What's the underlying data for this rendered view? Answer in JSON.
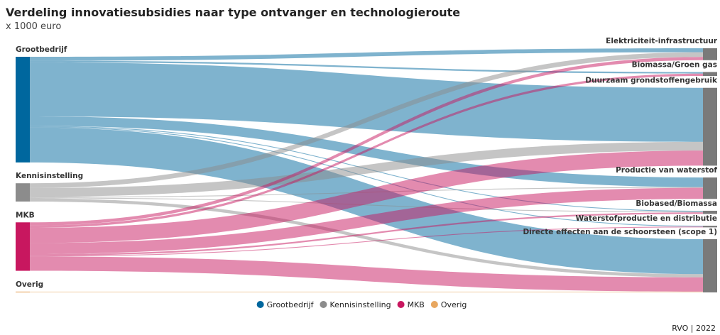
{
  "chart_data": {
    "type": "sankey",
    "title": "Verdeling innovatiesubsidies naar type ontvanger en technologieroute",
    "subtitle": "x 1000 euro",
    "sources": [
      {
        "name": "Grootbedrijf",
        "color": "#00679e"
      },
      {
        "name": "Kennisinstelling",
        "color": "#8c8c8c"
      },
      {
        "name": "MKB",
        "color": "#c8175f"
      },
      {
        "name": "Overig",
        "color": "#e8a760"
      }
    ],
    "targets": [
      "Elektriciteit-infrastructuur",
      "Biomassa/Groen gas",
      "Duurzaam grondstoffengebruik",
      "Productie van waterstof",
      "Biobased/Biomassa",
      "Waterstofproductie en distributie",
      "Directe effecten aan de schoorsteen (scope 1)"
    ],
    "target_color": "#7a7a7a",
    "flows": [
      {
        "source": 0,
        "target": 0,
        "value": 5
      },
      {
        "source": 0,
        "target": 1,
        "value": 2
      },
      {
        "source": 0,
        "target": 2,
        "value": 68
      },
      {
        "source": 0,
        "target": 3,
        "value": 12
      },
      {
        "source": 0,
        "target": 4,
        "value": 1
      },
      {
        "source": 0,
        "target": 5,
        "value": 1
      },
      {
        "source": 0,
        "target": 6,
        "value": 44
      },
      {
        "source": 1,
        "target": 0,
        "value": 6
      },
      {
        "source": 1,
        "target": 2,
        "value": 11
      },
      {
        "source": 1,
        "target": 3,
        "value": 1
      },
      {
        "source": 1,
        "target": 4,
        "value": 1
      },
      {
        "source": 1,
        "target": 6,
        "value": 4
      },
      {
        "source": 2,
        "target": 0,
        "value": 4
      },
      {
        "source": 2,
        "target": 1,
        "value": 3
      },
      {
        "source": 2,
        "target": 2,
        "value": 19
      },
      {
        "source": 2,
        "target": 3,
        "value": 14
      },
      {
        "source": 2,
        "target": 4,
        "value": 2
      },
      {
        "source": 2,
        "target": 5,
        "value": 1
      },
      {
        "source": 2,
        "target": 6,
        "value": 18
      },
      {
        "source": 3,
        "target": 6,
        "value": 1
      }
    ],
    "footer": "RVO | 2022"
  }
}
